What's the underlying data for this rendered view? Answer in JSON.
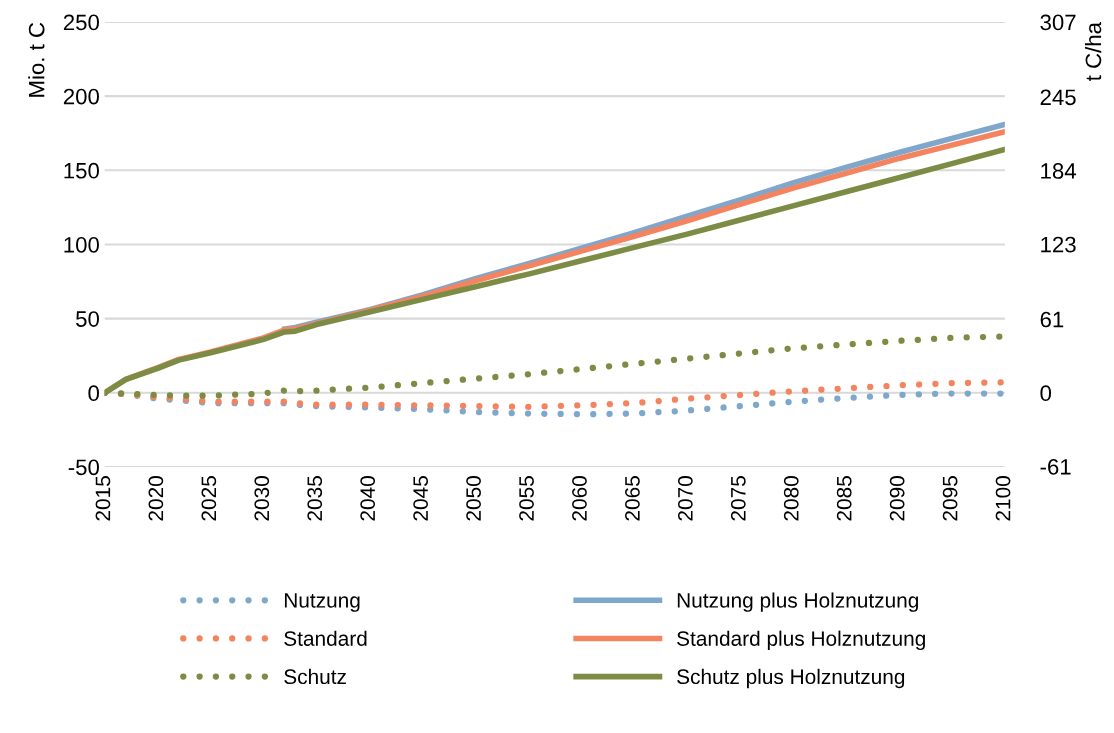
{
  "chart_data": {
    "type": "line",
    "ylabel": "Mio. t C",
    "y2label": "t C/ha",
    "xlim": [
      2015,
      2100
    ],
    "xticks": [
      2015,
      2020,
      2025,
      2030,
      2035,
      2040,
      2045,
      2050,
      2055,
      2060,
      2065,
      2070,
      2075,
      2080,
      2085,
      2090,
      2095,
      2100
    ],
    "ylim": [
      -50,
      250
    ],
    "yticks": [
      -50,
      0,
      50,
      100,
      150,
      200,
      250
    ],
    "y2lim": [
      -61.4,
      307
    ],
    "y2ticks": [
      -61,
      0,
      61,
      123,
      184,
      245,
      307
    ],
    "grid": "y",
    "legend": "bottom",
    "x": [
      2015,
      2017,
      2020,
      2022,
      2025,
      2030,
      2032,
      2033,
      2035,
      2040,
      2045,
      2050,
      2055,
      2060,
      2065,
      2070,
      2075,
      2080,
      2085,
      2090,
      2095,
      2100
    ],
    "series": [
      {
        "name": "Nutzung",
        "color": "#7fa7cc",
        "line_style": "dotted",
        "values": [
          0,
          -1,
          -4,
          -5,
          -7,
          -7,
          -7,
          -8,
          -9,
          -10,
          -11,
          -13,
          -14,
          -14.5,
          -14,
          -12,
          -9,
          -6,
          -3.5,
          -1.5,
          -0.5,
          -0.5
        ]
      },
      {
        "name": "Standard",
        "color": "#f4845f",
        "line_style": "dotted",
        "values": [
          0,
          -1,
          -3,
          -4,
          -6,
          -6,
          -6,
          -7,
          -8,
          -8,
          -8.5,
          -9,
          -9.5,
          -8.5,
          -7,
          -4,
          -1.5,
          1,
          3,
          5,
          6.5,
          7
        ]
      },
      {
        "name": "Schutz",
        "color": "#7d8c45",
        "line_style": "dotted",
        "values": [
          0,
          -0.5,
          -1.5,
          -2,
          -2,
          -0.5,
          1.5,
          1,
          1.5,
          3.5,
          6.5,
          9.5,
          12.5,
          16,
          19.5,
          23,
          26.5,
          30,
          32.5,
          35,
          37,
          38
        ]
      },
      {
        "name": "Nutzung plus Holznutzung",
        "color": "#7fa7cc",
        "line_style": "solid",
        "values": [
          null,
          null,
          null,
          null,
          null,
          null,
          43,
          44,
          47.5,
          56,
          66,
          77,
          87,
          97.5,
          108,
          119,
          130,
          141.5,
          152,
          162,
          171.5,
          181
        ]
      },
      {
        "name": "Standard plus Holznutzung",
        "color": "#f4845f",
        "line_style": "solid",
        "values": [
          0,
          9,
          17,
          22.5,
          27.5,
          37,
          42.5,
          43,
          46.5,
          55.5,
          65,
          75.5,
          85.5,
          95.5,
          105.5,
          116,
          127,
          138,
          148,
          158,
          167,
          176
        ]
      },
      {
        "name": "Schutz plus Holznutzung",
        "color": "#7d8c45",
        "line_style": "solid",
        "values": [
          0,
          9,
          16.5,
          22,
          27,
          36,
          41,
          41.5,
          46,
          54.5,
          63,
          71.5,
          80,
          89,
          98,
          107,
          116.5,
          126,
          135.5,
          145,
          154.5,
          164
        ]
      }
    ]
  }
}
